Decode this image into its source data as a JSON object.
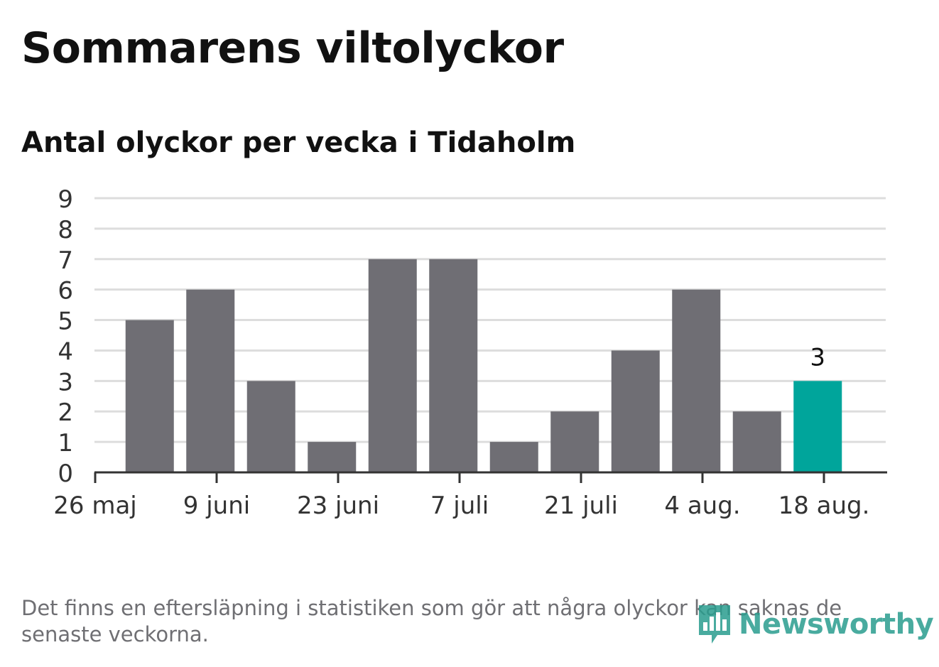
{
  "title": "Sommarens viltolyckor",
  "subtitle": "Antal olyckor per vecka i Tidaholm",
  "footnote": "Det finns en eftersläpning i statistiken som gör att några olyckor kan saknas de senaste veckorna.",
  "logo": {
    "text": "Newsworthy",
    "icon": "bar-chart-speech-bubble-icon"
  },
  "colors": {
    "bar": "#6f6e74",
    "highlight": "#00a59b",
    "grid": "#dddddd",
    "axis": "#333333",
    "text": "#111111",
    "footnote": "#6f6f73",
    "logo": "#2a9d8f"
  },
  "chart_data": {
    "type": "bar",
    "title": "Sommarens viltolyckor",
    "subtitle": "Antal olyckor per vecka i Tidaholm",
    "xlabel": "",
    "ylabel": "",
    "ylim": [
      0,
      9
    ],
    "yticks": [
      "0",
      "1",
      "2",
      "3",
      "4",
      "5",
      "6",
      "7",
      "8",
      "9"
    ],
    "x_tick_labels": [
      "26 maj",
      "9 juni",
      "23 juni",
      "7 juli",
      "21 juli",
      "4 aug.",
      "18 aug."
    ],
    "values": [
      5,
      6,
      3,
      1,
      7,
      7,
      1,
      2,
      4,
      6,
      2,
      3
    ],
    "highlight_index": 11,
    "data_labels": [
      {
        "index": 11,
        "text": "3"
      }
    ],
    "grid": true,
    "legend": "none"
  }
}
